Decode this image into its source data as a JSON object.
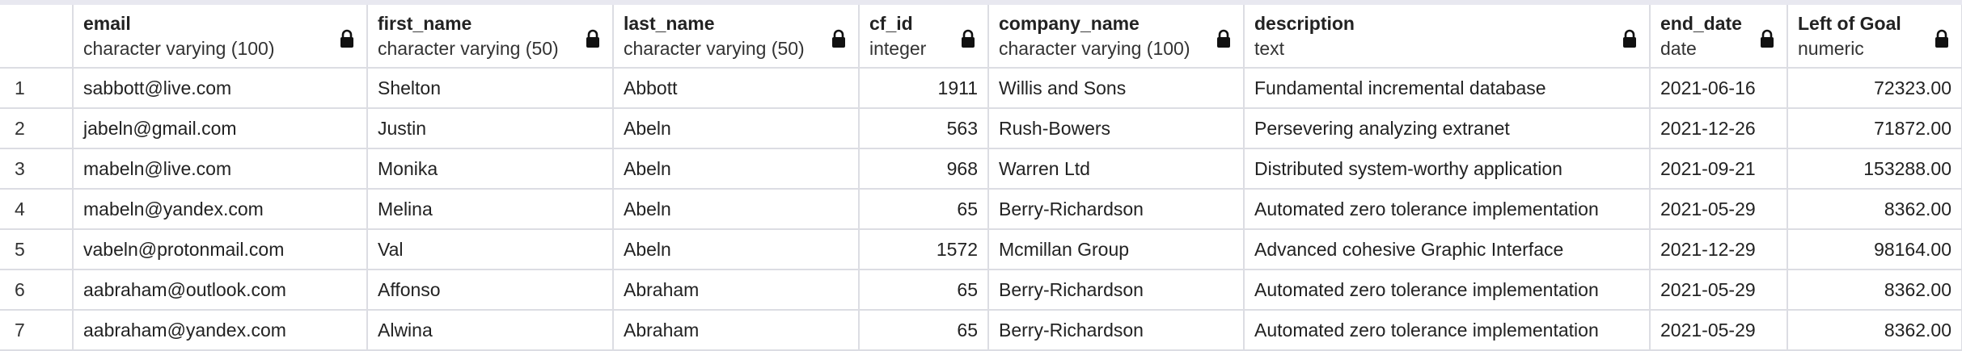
{
  "columns": [
    {
      "name": "email",
      "type": "character varying (100)"
    },
    {
      "name": "first_name",
      "type": "character varying (50)"
    },
    {
      "name": "last_name",
      "type": "character varying (50)"
    },
    {
      "name": "cf_id",
      "type": "integer"
    },
    {
      "name": "company_name",
      "type": "character varying (100)"
    },
    {
      "name": "description",
      "type": "text"
    },
    {
      "name": "end_date",
      "type": "date"
    },
    {
      "name": "Left of Goal",
      "type": "numeric"
    }
  ],
  "icons": {
    "column_lock": "lock-icon"
  },
  "rows": [
    {
      "n": "1",
      "cells": [
        "sabbott@live.com",
        "Shelton",
        "Abbott",
        "1911",
        "Willis and Sons",
        "Fundamental incremental database",
        "2021-06-16",
        "72323.00"
      ]
    },
    {
      "n": "2",
      "cells": [
        "jabeln@gmail.com",
        "Justin",
        "Abeln",
        "563",
        "Rush-Bowers",
        "Persevering analyzing extranet",
        "2021-12-26",
        "71872.00"
      ]
    },
    {
      "n": "3",
      "cells": [
        "mabeln@live.com",
        "Monika",
        "Abeln",
        "968",
        "Warren Ltd",
        "Distributed system-worthy application",
        "2021-09-21",
        "153288.00"
      ]
    },
    {
      "n": "4",
      "cells": [
        "mabeln@yandex.com",
        "Melina",
        "Abeln",
        "65",
        "Berry-Richardson",
        "Automated zero tolerance implementation",
        "2021-05-29",
        "8362.00"
      ]
    },
    {
      "n": "5",
      "cells": [
        "vabeln@protonmail.com",
        "Val",
        "Abeln",
        "1572",
        "Mcmillan Group",
        "Advanced cohesive Graphic Interface",
        "2021-12-29",
        "98164.00"
      ]
    },
    {
      "n": "6",
      "cells": [
        "aabraham@outlook.com",
        "Affonso",
        "Abraham",
        "65",
        "Berry-Richardson",
        "Automated zero tolerance implementation",
        "2021-05-29",
        "8362.00"
      ]
    },
    {
      "n": "7",
      "cells": [
        "aabraham@yandex.com",
        "Alwina",
        "Abraham",
        "65",
        "Berry-Richardson",
        "Automated zero tolerance implementation",
        "2021-05-29",
        "8362.00"
      ]
    }
  ]
}
